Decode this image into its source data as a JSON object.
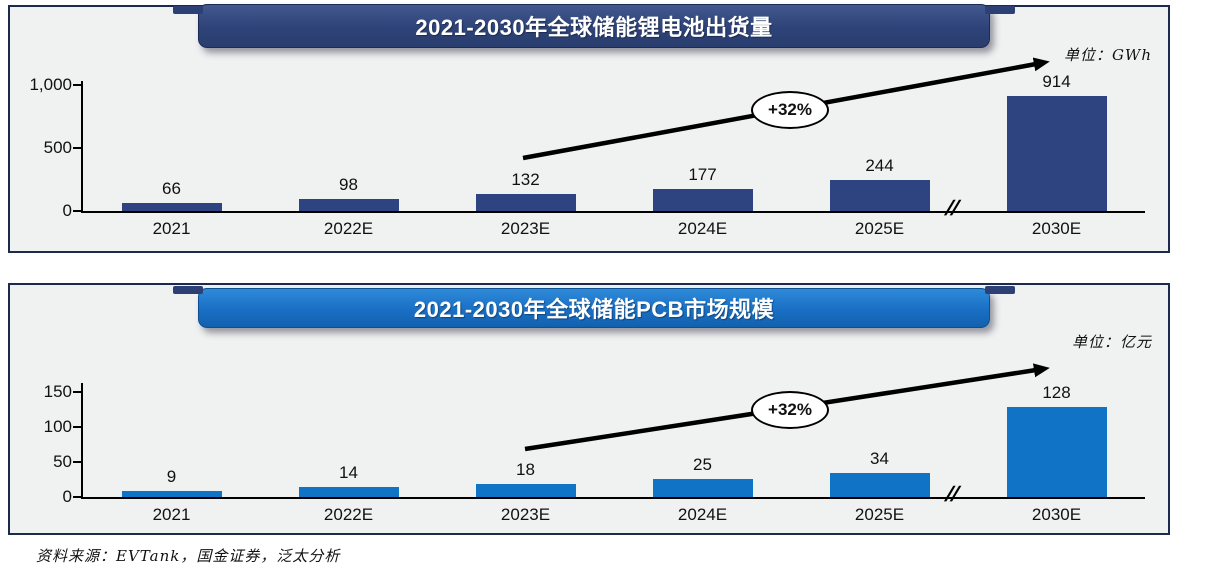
{
  "source_note": "资料来源：EVTank，国金证券，泛太分析",
  "charts": [
    {
      "title": "2021-2030年全球储能锂电池出货量",
      "unit_label": "单位：GWh",
      "growth_label": "+32%",
      "axis_break": "//"
    },
    {
      "title": "2021-2030年全球储能PCB市场规模",
      "unit_label": "单位：亿元",
      "growth_label": "+32%",
      "axis_break": "//"
    }
  ],
  "chart_data": [
    {
      "type": "bar",
      "title": "2021-2030年全球储能锂电池出货量",
      "unit": "GWh",
      "categories": [
        "2021",
        "2022E",
        "2023E",
        "2024E",
        "2025E",
        "2030E"
      ],
      "values": [
        66,
        98,
        132,
        177,
        244,
        914
      ],
      "ylim": [
        0,
        1000
      ],
      "yticks": [
        0,
        500,
        1000
      ],
      "ytick_labels": [
        "0",
        "500",
        "1,000"
      ],
      "bar_color": "#2e4481",
      "banner_color": "#31497e",
      "annotation": "+32%",
      "annotation_style": "oval-on-arrow",
      "axis_break_between": [
        "2025E",
        "2030E"
      ],
      "grid": false,
      "legend": "none"
    },
    {
      "type": "bar",
      "title": "2021-2030年全球储能PCB市场规模",
      "unit": "亿元",
      "categories": [
        "2021",
        "2022E",
        "2023E",
        "2024E",
        "2025E",
        "2030E"
      ],
      "values": [
        9,
        14,
        18,
        25,
        34,
        128
      ],
      "ylim": [
        0,
        150
      ],
      "yticks": [
        0,
        50,
        100,
        150
      ],
      "ytick_labels": [
        "0",
        "50",
        "100",
        "150"
      ],
      "bar_color": "#1173c5",
      "banner_color": "#1b70c6",
      "annotation": "+32%",
      "annotation_style": "oval-on-arrow",
      "axis_break_between": [
        "2025E",
        "2030E"
      ],
      "grid": false,
      "legend": "none"
    }
  ]
}
